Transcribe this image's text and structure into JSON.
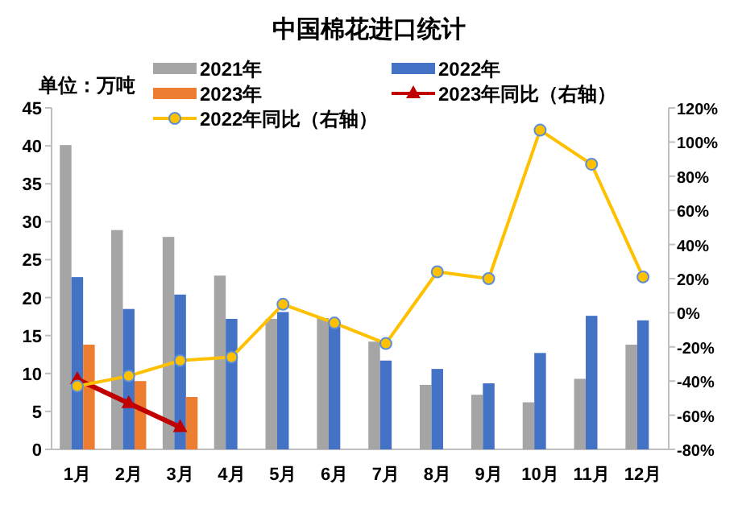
{
  "chart_data": {
    "type": "bar",
    "title": "中国棉花进口统计",
    "annotations": [
      "单位：万吨"
    ],
    "categories": [
      "1月",
      "2月",
      "3月",
      "4月",
      "5月",
      "6月",
      "7月",
      "8月",
      "9月",
      "10月",
      "11月",
      "12月"
    ],
    "series": [
      {
        "name": "2021年",
        "color": "#a5a5a5",
        "values": [
          40.1,
          28.9,
          28,
          22.9,
          17.2,
          17.3,
          14.2,
          8.5,
          7.2,
          6.2,
          9.3,
          13.8
        ]
      },
      {
        "name": "2022年",
        "color": "#4472c4",
        "values": [
          22.7,
          18.5,
          20.4,
          17.2,
          18.1,
          16.7,
          11.7,
          10.6,
          8.7,
          12.7,
          17.6,
          17.0
        ]
      },
      {
        "name": "2023年",
        "color": "#ed7d31",
        "values": [
          13.8,
          9.0,
          6.9,
          null,
          null,
          null,
          null,
          null,
          null,
          null,
          null,
          null
        ]
      },
      {
        "name": "2023年同比（右轴）",
        "type": "line",
        "axis": "y2",
        "color": "#c00000",
        "marker": "triangle",
        "values": [
          -39,
          -53,
          -67,
          null,
          null,
          null,
          null,
          null,
          null,
          null,
          null,
          null
        ]
      },
      {
        "name": "2022年同比（右轴）",
        "type": "line",
        "axis": "y2",
        "color": "#ffc000",
        "marker": "circle",
        "values": [
          -43,
          -37,
          -28,
          -26,
          5,
          -6,
          -18,
          24,
          20,
          107,
          87,
          21
        ]
      }
    ],
    "ylim": [
      0,
      45
    ],
    "yticks": [
      0,
      5,
      10,
      15,
      20,
      25,
      30,
      35,
      40,
      45
    ],
    "y2lim": [
      -80,
      120
    ],
    "y2ticks": [
      {
        "value": -80,
        "label": "-80%"
      },
      {
        "value": -60,
        "label": "-60%"
      },
      {
        "value": -40,
        "label": "-40%"
      },
      {
        "value": -20,
        "label": "-20%"
      },
      {
        "value": 0,
        "label": "0%"
      },
      {
        "value": 20,
        "label": "20%"
      },
      {
        "value": 40,
        "label": "40%"
      },
      {
        "value": 60,
        "label": "60%"
      },
      {
        "value": 80,
        "label": "80%"
      },
      {
        "value": 100,
        "label": "100%"
      },
      {
        "value": 120,
        "label": "120%"
      }
    ],
    "legend": "top",
    "grid": false
  }
}
